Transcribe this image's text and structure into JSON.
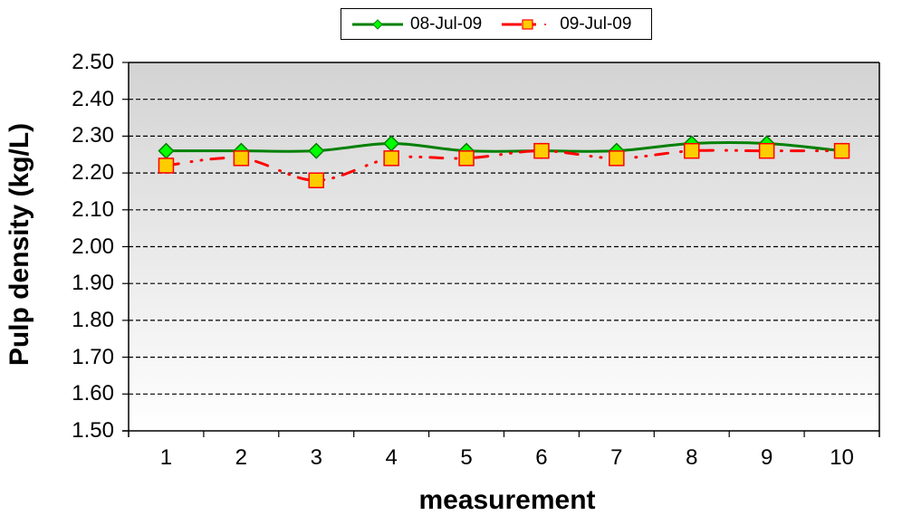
{
  "chart_data": {
    "type": "line",
    "title": "",
    "xlabel": "measurement",
    "ylabel": "Pulp density (kg/L)",
    "categories": [
      "1",
      "2",
      "3",
      "4",
      "5",
      "6",
      "7",
      "8",
      "9",
      "10"
    ],
    "x": [
      1,
      2,
      3,
      4,
      5,
      6,
      7,
      8,
      9,
      10
    ],
    "ylim": [
      1.5,
      2.5
    ],
    "yticks": [
      "2.50",
      "2.40",
      "2.30",
      "2.20",
      "2.10",
      "2.00",
      "1.90",
      "1.80",
      "1.70",
      "1.60",
      "1.50"
    ],
    "ytick_values": [
      2.5,
      2.4,
      2.3,
      2.2,
      2.1,
      2.0,
      1.9,
      1.8,
      1.7,
      1.6,
      1.5
    ],
    "grid": true,
    "grid_style": "dashed horizontal",
    "legend_position": "top-center",
    "series": [
      {
        "name": "08-Jul-09",
        "values": [
          2.26,
          2.26,
          2.26,
          2.28,
          2.26,
          2.26,
          2.26,
          2.28,
          2.28,
          2.26
        ],
        "line_color": "#008000",
        "line_style": "solid",
        "marker": "diamond",
        "marker_fill": "#00ff00",
        "marker_edge": "#008000"
      },
      {
        "name": "09-Jul-09",
        "values": [
          2.22,
          2.24,
          2.18,
          2.24,
          2.24,
          2.26,
          2.24,
          2.26,
          2.26,
          2.26
        ],
        "line_color": "#ff0000",
        "line_style": "dash-dot-dot",
        "marker": "square",
        "marker_fill": "#ffcc00",
        "marker_edge": "#ff0000"
      }
    ],
    "background_gradient": [
      "#d3d3d3",
      "#ffffff"
    ]
  },
  "legend": {
    "entries": [
      "08-Jul-09",
      "09-Jul-09"
    ]
  }
}
